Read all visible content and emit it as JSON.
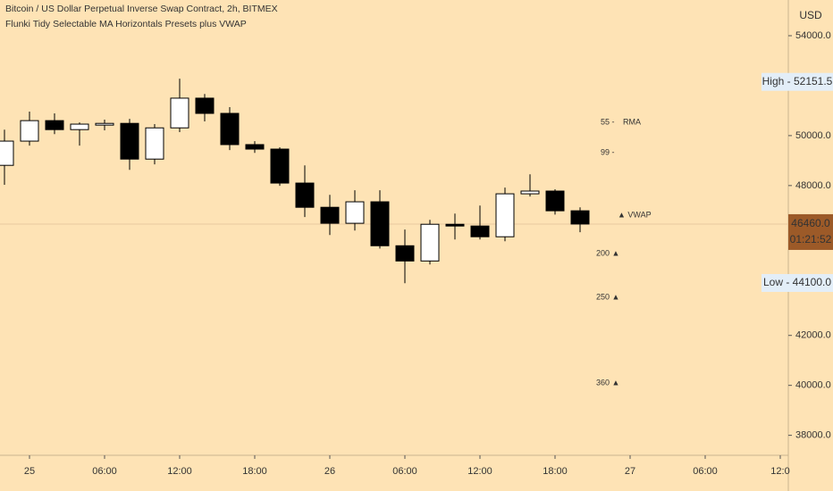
{
  "chart_data": {
    "type": "candlestick",
    "title": "Bitcoin / US Dollar Perpetual Inverse Swap Contract, 2h, BITMEX",
    "subtitle": "Flunki Tidy Selectable MA Horizontals Presets plus VWAP",
    "currency": "USD",
    "categories": [
      null,
      "25",
      null,
      null,
      "06:00",
      null,
      null,
      "12:00",
      null,
      null,
      "18:00",
      null,
      null,
      "26",
      null,
      null,
      "06:00",
      null,
      null,
      "12:00",
      null,
      null,
      "18:00",
      null,
      null,
      "27",
      null,
      null,
      "06:00",
      null,
      null,
      "12:0"
    ],
    "open": [
      48810,
      49780,
      50600,
      50240,
      50420,
      50490,
      49060,
      50310,
      51500,
      50890,
      49640,
      49460,
      48100,
      47130,
      46490,
      47350,
      45590,
      44980,
      46450,
      46380,
      45950,
      47670,
      47780,
      46990,
      null,
      null,
      null,
      null,
      null,
      null,
      null,
      null
    ],
    "high": [
      50240,
      50960,
      50890,
      50530,
      50640,
      50670,
      50460,
      52280,
      51670,
      51140,
      49780,
      49530,
      48810,
      47630,
      47810,
      47810,
      46240,
      46630,
      46880,
      47200,
      47920,
      48450,
      47850,
      47130,
      null,
      null,
      null,
      null,
      null,
      null,
      null,
      null
    ],
    "low": [
      48030,
      49600,
      50060,
      49600,
      50210,
      48630,
      48850,
      50140,
      50570,
      49420,
      49310,
      47990,
      46740,
      46020,
      46200,
      45480,
      44090,
      44840,
      45840,
      45840,
      45770,
      47560,
      46840,
      46130,
      null,
      null,
      null,
      null,
      null,
      null,
      null,
      null
    ],
    "close": [
      49780,
      50600,
      50240,
      50460,
      50490,
      49060,
      50310,
      51500,
      50890,
      49640,
      49460,
      48100,
      47130,
      46490,
      47350,
      45590,
      44980,
      46450,
      46380,
      45950,
      47670,
      47780,
      46990,
      46460,
      null,
      null,
      null,
      null,
      null,
      null,
      null,
      null
    ],
    "up_color": "#ffffff",
    "down_color": "#000000",
    "ylim": [
      37200,
      55430
    ],
    "yticks": [
      {
        "value": 38000,
        "label": "38000.0"
      },
      {
        "value": 40000,
        "label": "40000.0"
      },
      {
        "value": 42000,
        "label": "42000.0"
      },
      {
        "value": 44000,
        "label": "44000.0"
      },
      {
        "value": 46000,
        "label": "46000.0"
      },
      {
        "value": 48000,
        "label": "48000.0"
      },
      {
        "value": 50000,
        "label": "50000.0"
      },
      {
        "value": 52000,
        "label": "52000.0"
      },
      {
        "value": 54000,
        "label": "54000.0"
      }
    ],
    "high_mark": {
      "value": 52151.5,
      "label": "High - 52151.5"
    },
    "low_mark": {
      "value": 44100,
      "label": "Low - 44100.0"
    },
    "last_price": {
      "value": 46460,
      "label": "46460.0"
    },
    "countdown": "01:21:52",
    "markers": [
      {
        "text": "55 -",
        "color": "#4f8fd0"
      },
      {
        "text": "RMA",
        "color": "#7a3a9a"
      },
      {
        "text": "99 -",
        "color": "#3c9a3c"
      },
      {
        "text": "▲ VWAP",
        "color": "#333333"
      },
      {
        "text": "200 ▲",
        "color": "#f29900"
      },
      {
        "text": "250 ▲",
        "color": "#e04848"
      },
      {
        "text": "360 ▲",
        "color": "#6b1f3f"
      }
    ]
  }
}
